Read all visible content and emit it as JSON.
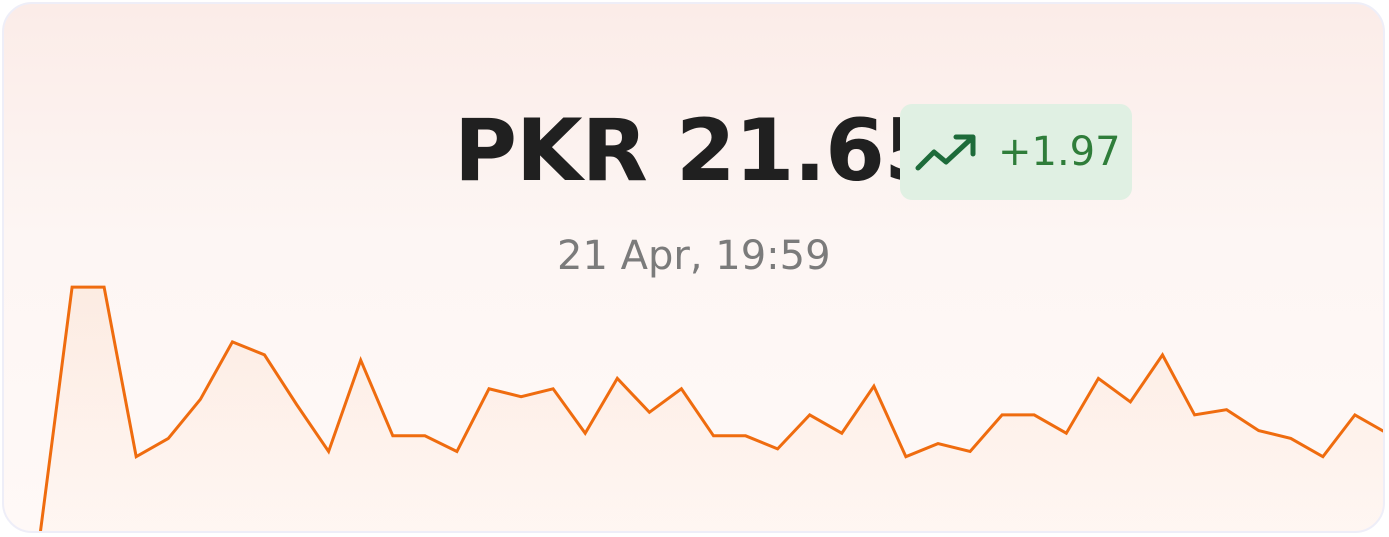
{
  "header": {
    "price": "PKR 21.65",
    "change": "+1.97",
    "timestamp": "21 Apr, 19:59",
    "trend_icon": "trending-up-icon"
  },
  "colors": {
    "line": "#ef6c0f",
    "badge_bg": "#e0f0e3",
    "badge_text": "#2f7d3a",
    "icon": "#1d6b3a"
  },
  "chart_data": {
    "type": "area",
    "title": "",
    "xlabel": "",
    "ylabel": "",
    "grid": false,
    "ylim": [
      0,
      10
    ],
    "values": [
      0.0,
      9.5,
      9.5,
      3.0,
      3.7,
      5.2,
      7.4,
      6.9,
      5.0,
      3.2,
      6.7,
      3.8,
      3.8,
      3.2,
      5.6,
      5.3,
      5.6,
      3.9,
      6.0,
      4.7,
      5.6,
      3.8,
      3.8,
      3.3,
      4.6,
      3.9,
      5.7,
      3.0,
      3.5,
      3.2,
      4.6,
      4.6,
      3.9,
      6.0,
      5.1,
      6.9,
      4.6,
      4.8,
      4.0,
      3.7,
      3.0,
      4.6,
      3.9
    ]
  }
}
